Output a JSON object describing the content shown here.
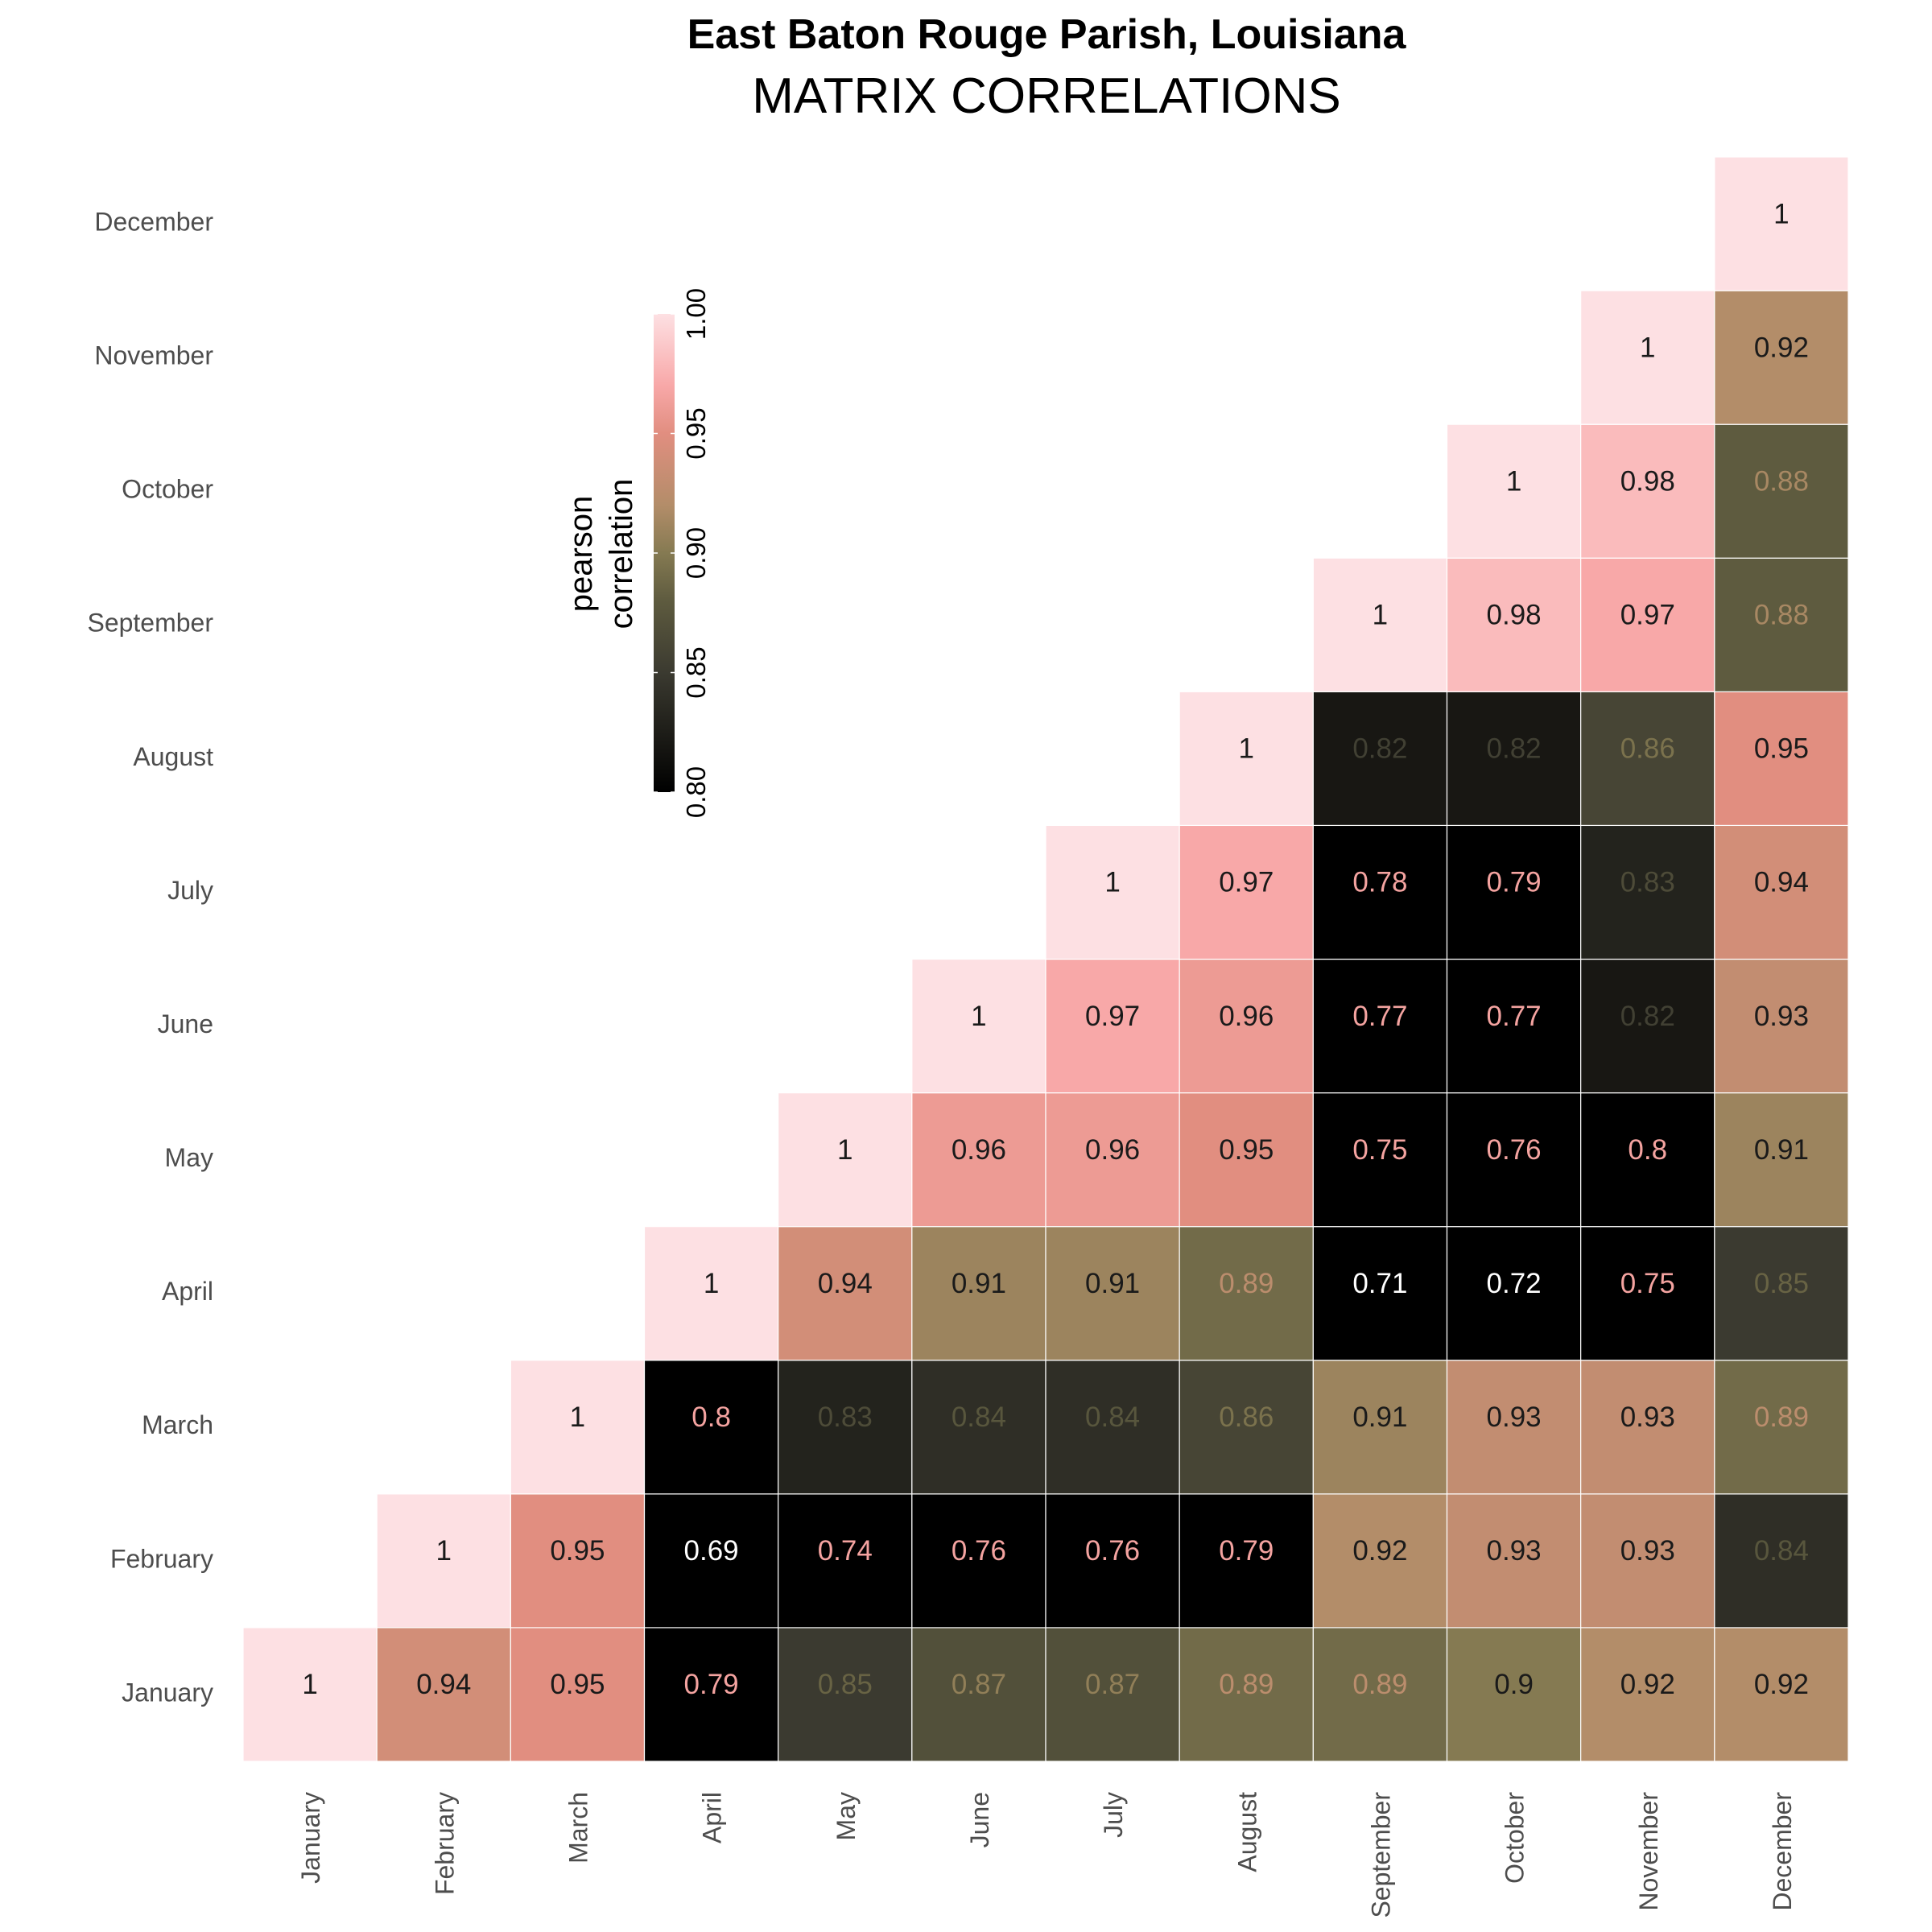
{
  "chart_data": {
    "type": "heatmap",
    "title": "East Baton Rouge Parish, Louisiana",
    "subtitle": "MATRIX CORRELATIONS",
    "categories": [
      "January",
      "February",
      "March",
      "April",
      "May",
      "June",
      "July",
      "August",
      "September",
      "October",
      "November",
      "December"
    ],
    "x_labels": [
      "January",
      "February",
      "March",
      "April",
      "May",
      "June",
      "July",
      "August",
      "September",
      "October",
      "November",
      "December"
    ],
    "y_labels": [
      "January",
      "February",
      "March",
      "April",
      "May",
      "June",
      "July",
      "August",
      "September",
      "October",
      "November",
      "December"
    ],
    "lower_triangle_shown": false,
    "matrix": [
      [
        1,
        0.94,
        0.95,
        0.79,
        0.85,
        0.87,
        0.87,
        0.89,
        0.89,
        0.9,
        0.92,
        0.92
      ],
      [
        0.94,
        1,
        0.95,
        0.69,
        0.74,
        0.76,
        0.76,
        0.79,
        0.92,
        0.93,
        0.93,
        0.84
      ],
      [
        0.95,
        0.95,
        1,
        0.8,
        0.83,
        0.84,
        0.84,
        0.86,
        0.91,
        0.93,
        0.93,
        0.89
      ],
      [
        0.79,
        0.69,
        0.8,
        1,
        0.94,
        0.91,
        0.91,
        0.89,
        0.71,
        0.72,
        0.75,
        0.85
      ],
      [
        0.85,
        0.74,
        0.83,
        0.94,
        1,
        0.96,
        0.96,
        0.95,
        0.75,
        0.76,
        0.8,
        0.91
      ],
      [
        0.87,
        0.76,
        0.84,
        0.91,
        0.96,
        1,
        0.97,
        0.96,
        0.77,
        0.77,
        0.82,
        0.93
      ],
      [
        0.87,
        0.76,
        0.84,
        0.91,
        0.96,
        0.97,
        1,
        0.97,
        0.78,
        0.79,
        0.83,
        0.94
      ],
      [
        0.89,
        0.79,
        0.86,
        0.89,
        0.95,
        0.96,
        0.97,
        1,
        0.82,
        0.82,
        0.86,
        0.95
      ],
      [
        0.89,
        0.92,
        0.91,
        0.71,
        0.75,
        0.77,
        0.78,
        0.82,
        1,
        0.98,
        0.97,
        0.88
      ],
      [
        0.9,
        0.93,
        0.93,
        0.72,
        0.76,
        0.77,
        0.79,
        0.82,
        0.98,
        1,
        0.98,
        0.88
      ],
      [
        0.92,
        0.93,
        0.93,
        0.75,
        0.8,
        0.82,
        0.83,
        0.86,
        0.97,
        0.98,
        1,
        0.92
      ],
      [
        0.92,
        0.84,
        0.89,
        0.85,
        0.91,
        0.93,
        0.94,
        0.95,
        0.88,
        0.88,
        0.92,
        1
      ]
    ],
    "color_scale": {
      "limits": [
        0.8,
        1.0
      ],
      "stops": [
        {
          "value": 0.8,
          "color": "#000000"
        },
        {
          "value": 0.85,
          "color": "#3b3a30"
        },
        {
          "value": 0.88,
          "color": "#5e5b3f"
        },
        {
          "value": 0.9,
          "color": "#857a52"
        },
        {
          "value": 0.92,
          "color": "#b38d69"
        },
        {
          "value": 0.95,
          "color": "#e18e80"
        },
        {
          "value": 0.97,
          "color": "#f8a8a8"
        },
        {
          "value": 1.0,
          "color": "#fde0e3"
        }
      ]
    },
    "legend": {
      "title_lines": [
        "pearson",
        "correlation"
      ],
      "ticks": [
        "0.80",
        "0.85",
        "0.90",
        "0.95",
        "1.00"
      ],
      "tick_values": [
        0.8,
        0.85,
        0.9,
        0.95,
        1.0
      ],
      "placement": "top-left inside"
    },
    "grid": false
  }
}
